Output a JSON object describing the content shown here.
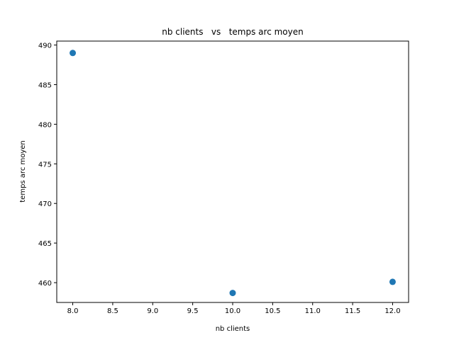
{
  "chart_data": {
    "type": "scatter",
    "title": "nb clients   vs   temps arc moyen",
    "xlabel": "nb clients",
    "ylabel": "temps arc moyen",
    "xlim": [
      7.8,
      12.2
    ],
    "ylim": [
      457.5,
      490.5
    ],
    "xticks": [
      "8.0",
      "8.5",
      "9.0",
      "9.5",
      "10.0",
      "10.5",
      "11.0",
      "11.5",
      "12.0"
    ],
    "yticks": [
      "460",
      "465",
      "470",
      "475",
      "480",
      "485",
      "490"
    ],
    "grid": false,
    "marker_color": "#1f77b4",
    "points": [
      {
        "x": 8,
        "y": 489
      },
      {
        "x": 10,
        "y": 458.7
      },
      {
        "x": 12,
        "y": 460.1
      }
    ]
  }
}
